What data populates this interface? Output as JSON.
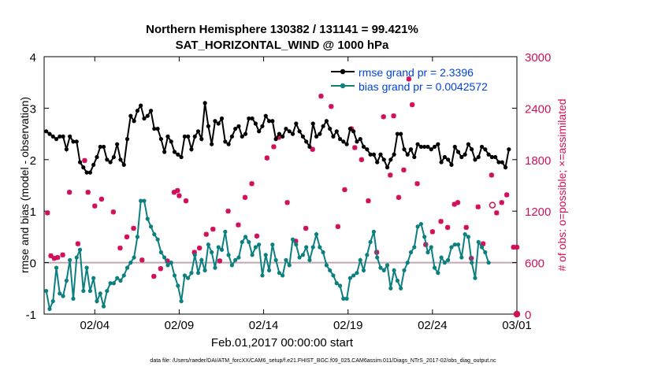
{
  "chart_data": {
    "type": "line",
    "title_line1": "Northern Hemisphere 130382 / 131141 = 99.421%",
    "title_line2": "SAT_HORIZONTAL_WIND @ 1000 hPa",
    "xlabel": "Feb.01,2017 00:00:00 start",
    "ylabel_left": "rmse and bias (model - observation)",
    "ylabel_right": "# of obs: o=possible; ×=assimilated",
    "footer": "data file: /Users/raeder/DAI/ATM_forcXX/CAM6_setup/f.e21.FHIST_BGC.f09_025.CAM6assim.011/Diags_NTrS_2017-02/obs_diag_output.nc",
    "x_ticks": [
      "02/04",
      "02/09",
      "02/14",
      "02/19",
      "02/24",
      "03/01"
    ],
    "x_tick_days": [
      3,
      8,
      13,
      18,
      23,
      28
    ],
    "xlim": [
      0.0,
      28.0
    ],
    "ylim_left": [
      -1,
      4
    ],
    "left_ticks": [
      "-1",
      "0",
      "1",
      "2",
      "3",
      "4"
    ],
    "ylim_right": [
      0,
      3000
    ],
    "right_ticks": [
      "0",
      "600",
      "1200",
      "1800",
      "2400",
      "3000"
    ],
    "colors": {
      "rmse": "#000000",
      "bias": "#0c7f7f",
      "obs": "#d0105a",
      "zero": "#c0a8b4",
      "axis": "#000000"
    },
    "series": [
      {
        "name": "rmse",
        "legend": "rmse grand pr = 2.3396",
        "values": [
          2.55,
          2.5,
          2.45,
          2.4,
          2.45,
          2.45,
          2.2,
          2.45,
          2.35,
          2.35,
          1.95,
          1.85,
          1.75,
          1.75,
          1.9,
          2.05,
          2.25,
          2.25,
          2.0,
          1.95,
          2.05,
          2.3,
          2.0,
          1.9,
          2.4,
          2.85,
          2.75,
          2.95,
          3.05,
          2.8,
          2.85,
          2.95,
          2.6,
          2.6,
          2.4,
          2.15,
          2.45,
          2.35,
          2.15,
          2.1,
          2.05,
          2.45,
          2.45,
          2.2,
          2.45,
          2.55,
          2.4,
          3.1,
          2.65,
          2.3,
          2.75,
          2.7,
          2.8,
          2.35,
          2.3,
          2.45,
          2.6,
          2.65,
          2.45,
          2.5,
          2.8,
          2.8,
          2.7,
          2.55,
          2.65,
          2.85,
          2.75,
          2.75,
          2.4,
          2.5,
          2.45,
          2.6,
          2.55,
          2.5,
          2.7,
          2.55,
          2.45,
          2.35,
          2.25,
          2.7,
          2.45,
          2.5,
          2.65,
          2.75,
          2.6,
          2.45,
          2.55,
          2.4,
          2.35,
          2.3,
          2.6,
          2.55,
          2.35,
          2.4,
          2.25,
          2.2,
          2.1,
          2.1,
          1.95,
          2.1,
          2.0,
          1.85,
          2.0,
          2.1,
          2.5,
          2.5,
          2.2,
          2.1,
          2.2,
          2.05,
          2.3,
          2.25,
          2.25,
          2.25,
          2.2,
          2.25,
          2.3,
          1.95,
          2.05,
          2.0,
          1.9,
          2.25,
          2.15,
          2.05,
          2.1,
          2.3,
          2.2,
          2.0,
          2.05,
          2.25,
          2.2,
          2.1,
          2.05,
          2.05,
          1.95,
          1.95,
          1.85,
          2.2
        ],
        "x_start": 0.125,
        "x_step": 0.2
      },
      {
        "name": "bias",
        "legend": "bias grand pr = 0.0042572",
        "values": [
          -0.55,
          -0.9,
          -0.75,
          -0.1,
          -0.6,
          -0.65,
          -0.35,
          0.05,
          -0.7,
          0.1,
          0.25,
          -0.55,
          -0.1,
          -0.55,
          -0.3,
          -0.75,
          -0.6,
          -0.85,
          -0.55,
          -0.4,
          -0.4,
          -0.3,
          -0.35,
          -0.25,
          -0.1,
          0.0,
          0.1,
          0.5,
          1.2,
          1.2,
          0.85,
          0.7,
          0.55,
          0.45,
          0.2,
          0.1,
          -0.05,
          0.0,
          -0.25,
          -0.45,
          -0.75,
          -0.25,
          -0.3,
          -0.2,
          0.15,
          -0.2,
          0.05,
          -0.15,
          0.35,
          0.2,
          -0.1,
          0.3,
          0.25,
          0.6,
          0.15,
          -0.05,
          0.05,
          0.1,
          0.4,
          0.5,
          0.4,
          0.15,
          0.3,
          0.35,
          -0.25,
          0.15,
          -0.15,
          0.35,
          0.05,
          -0.2,
          -0.25,
          0.05,
          -0.05,
          0.45,
          0.35,
          0.1,
          0.15,
          0.3,
          0.05,
          0.3,
          0.55,
          0.3,
          0.2,
          -0.05,
          -0.15,
          -0.25,
          -0.4,
          -0.45,
          -0.7,
          -0.7,
          -0.3,
          -0.25,
          -0.2,
          0.05,
          -0.15,
          0.15,
          0.4,
          0.6,
          0.1,
          -0.1,
          -0.15,
          -0.05,
          -0.5,
          -0.15,
          -0.35,
          -0.5,
          -0.15,
          0.0,
          0.2,
          0.3,
          0.7,
          0.75,
          0.5,
          0.2,
          0.3,
          -0.1,
          -0.2,
          0.1,
          0.0,
          0.05,
          0.3,
          0.35,
          0.35,
          0.1,
          0.55,
          0.5,
          0.0,
          -0.3,
          0.4,
          0.3,
          0.2,
          0.0
        ],
        "x_start": 0.125,
        "x_step": 0.2
      }
    ],
    "obs_assimilated_markers": [
      [
        0.2,
        1180
      ],
      [
        0.4,
        680
      ],
      [
        0.6,
        650
      ],
      [
        0.8,
        660
      ],
      [
        1.1,
        690
      ],
      [
        1.5,
        1420
      ],
      [
        2.0,
        820
      ],
      [
        2.4,
        1790
      ],
      [
        2.6,
        1420
      ],
      [
        3.0,
        1260
      ],
      [
        3.4,
        1340
      ],
      [
        4.1,
        1190
      ],
      [
        4.5,
        770
      ],
      [
        4.9,
        900
      ],
      [
        5.3,
        1000
      ],
      [
        5.8,
        630
      ],
      [
        6.5,
        440
      ],
      [
        6.9,
        530
      ],
      [
        7.3,
        620
      ],
      [
        7.7,
        1420
      ],
      [
        7.9,
        1440
      ],
      [
        8.0,
        1380
      ],
      [
        8.4,
        1320
      ],
      [
        8.9,
        720
      ],
      [
        9.2,
        770
      ],
      [
        9.6,
        930
      ],
      [
        10.0,
        990
      ],
      [
        10.4,
        620
      ],
      [
        10.9,
        1200
      ],
      [
        11.5,
        1040
      ],
      [
        11.9,
        1360
      ],
      [
        12.3,
        1520
      ],
      [
        12.6,
        910
      ],
      [
        13.2,
        1820
      ],
      [
        13.6,
        1950
      ],
      [
        13.9,
        2060
      ],
      [
        14.4,
        1300
      ],
      [
        14.9,
        850
      ],
      [
        15.5,
        1000
      ],
      [
        15.9,
        1920
      ],
      [
        16.4,
        2540
      ],
      [
        17.0,
        2420
      ],
      [
        17.4,
        1020
      ],
      [
        17.8,
        1450
      ],
      [
        18.2,
        2160
      ],
      [
        18.4,
        1940
      ],
      [
        18.8,
        1800
      ],
      [
        19.2,
        1320
      ],
      [
        19.7,
        720
      ],
      [
        20.1,
        2300
      ],
      [
        20.5,
        1620
      ],
      [
        20.7,
        2310
      ],
      [
        21.0,
        1360
      ],
      [
        21.3,
        1680
      ],
      [
        21.6,
        2740
      ],
      [
        21.8,
        2440
      ],
      [
        22.1,
        1520
      ],
      [
        22.6,
        810
      ],
      [
        23.0,
        960
      ],
      [
        23.5,
        1080
      ],
      [
        23.9,
        1010
      ],
      [
        24.3,
        1280
      ],
      [
        24.5,
        1300
      ],
      [
        25.0,
        1010
      ],
      [
        25.3,
        650
      ],
      [
        25.7,
        1250
      ],
      [
        26.0,
        820
      ],
      [
        26.5,
        1620
      ],
      [
        26.8,
        1180
      ],
      [
        27.1,
        1300
      ],
      [
        27.4,
        1390
      ],
      [
        27.8,
        780
      ],
      [
        28.0,
        780
      ]
    ],
    "obs_possible_markers": [
      [
        26.55,
        1270
      ],
      [
        28.0,
        0
      ]
    ]
  }
}
